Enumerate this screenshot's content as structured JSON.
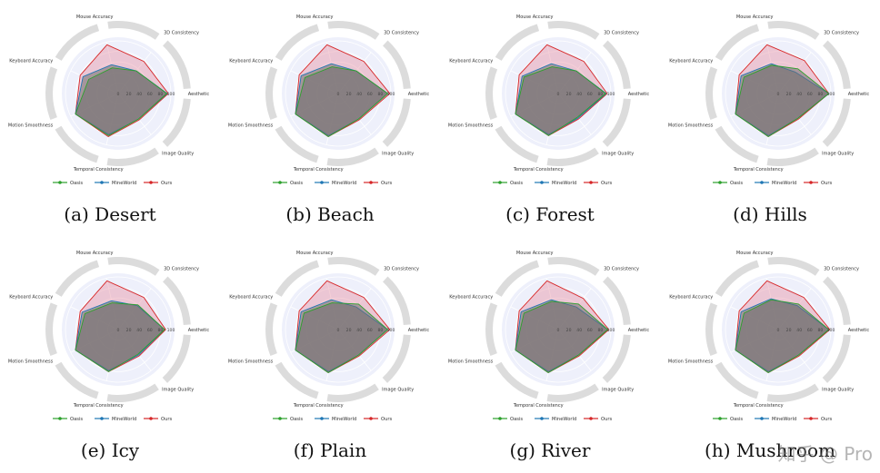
{
  "axes": [
    "Aesthetic",
    "Image Quality",
    "Temporal Consistency",
    "Motion Smoothness",
    "Keyboard Accuracy",
    "Mouse Accuracy",
    "3D Consistency"
  ],
  "ticks": [
    "0",
    "20",
    "40",
    "60",
    "80",
    "100"
  ],
  "legend": [
    "Oasis",
    "MineWorld",
    "Ours"
  ],
  "colors": {
    "Oasis": "#2ca02c",
    "MineWorld": "#1f77b4",
    "Ours": "#d62728",
    "Ours_fill": "rgba(228,120,140,0.35)",
    "Other_fill": "rgba(110,110,110,0.55)",
    "ring": "#dcdcdc",
    "plot_bg": "#eef0fb"
  },
  "watermark": "知乎 @ Pro",
  "chart_data": [
    {
      "type": "radar",
      "caption": "(a) Desert",
      "categories": [
        "Aesthetic",
        "Image Quality",
        "Temporal Consistency",
        "Motion Smoothness",
        "Keyboard Accuracy",
        "Mouse Accuracy",
        "3D Consistency"
      ],
      "rlim": [
        0,
        100
      ],
      "series": [
        {
          "name": "Oasis",
          "values": [
            92,
            62,
            82,
            90,
            62,
            50,
            55
          ]
        },
        {
          "name": "MineWorld",
          "values": [
            93,
            62,
            80,
            90,
            74,
            56,
            55
          ]
        },
        {
          "name": "Ours",
          "values": [
            95,
            64,
            84,
            90,
            80,
            95,
            78
          ]
        }
      ]
    },
    {
      "type": "radar",
      "caption": "(b) Beach",
      "categories": [
        "Aesthetic",
        "Image Quality",
        "Temporal Consistency",
        "Motion Smoothness",
        "Keyboard Accuracy",
        "Mouse Accuracy",
        "3D Consistency"
      ],
      "rlim": [
        0,
        100
      ],
      "series": [
        {
          "name": "Oasis",
          "values": [
            94,
            62,
            84,
            90,
            70,
            52,
            55
          ]
        },
        {
          "name": "MineWorld",
          "values": [
            94,
            62,
            82,
            90,
            78,
            58,
            55
          ]
        },
        {
          "name": "Ours",
          "values": [
            98,
            64,
            84,
            90,
            82,
            95,
            78
          ]
        }
      ]
    },
    {
      "type": "radar",
      "caption": "(c) Forest",
      "categories": [
        "Aesthetic",
        "Image Quality",
        "Temporal Consistency",
        "Motion Smoothness",
        "Keyboard Accuracy",
        "Mouse Accuracy",
        "3D Consistency"
      ],
      "rlim": [
        0,
        100
      ],
      "series": [
        {
          "name": "Oasis",
          "values": [
            90,
            58,
            82,
            90,
            72,
            52,
            55
          ]
        },
        {
          "name": "MineWorld",
          "values": [
            91,
            60,
            80,
            90,
            76,
            58,
            55
          ]
        },
        {
          "name": "Ours",
          "values": [
            93,
            62,
            82,
            90,
            82,
            95,
            78
          ]
        }
      ]
    },
    {
      "type": "radar",
      "caption": "(d) Hills",
      "categories": [
        "Aesthetic",
        "Image Quality",
        "Temporal Consistency",
        "Motion Smoothness",
        "Keyboard Accuracy",
        "Mouse Accuracy",
        "3D Consistency"
      ],
      "rlim": [
        0,
        100
      ],
      "series": [
        {
          "name": "Oasis",
          "values": [
            96,
            60,
            84,
            90,
            72,
            55,
            60
          ]
        },
        {
          "name": "MineWorld",
          "values": [
            96,
            60,
            82,
            90,
            78,
            58,
            52
          ]
        },
        {
          "name": "Ours",
          "values": [
            96,
            62,
            84,
            90,
            82,
            95,
            80
          ]
        }
      ]
    },
    {
      "type": "radar",
      "caption": "(e) Icy",
      "categories": [
        "Aesthetic",
        "Image Quality",
        "Temporal Consistency",
        "Motion Smoothness",
        "Keyboard Accuracy",
        "Mouse Accuracy",
        "3D Consistency"
      ],
      "rlim": [
        0,
        100
      ],
      "series": [
        {
          "name": "Oasis",
          "values": [
            88,
            60,
            82,
            90,
            70,
            52,
            60
          ]
        },
        {
          "name": "MineWorld",
          "values": [
            88,
            62,
            80,
            90,
            76,
            56,
            58
          ]
        },
        {
          "name": "Ours",
          "values": [
            90,
            64,
            82,
            90,
            80,
            95,
            78
          ]
        }
      ]
    },
    {
      "type": "radar",
      "caption": "(f) Plain",
      "categories": [
        "Aesthetic",
        "Image Quality",
        "Temporal Consistency",
        "Motion Smoothness",
        "Keyboard Accuracy",
        "Mouse Accuracy",
        "3D Consistency"
      ],
      "rlim": [
        0,
        100
      ],
      "series": [
        {
          "name": "Oasis",
          "values": [
            94,
            62,
            84,
            90,
            72,
            52,
            62
          ]
        },
        {
          "name": "MineWorld",
          "values": [
            94,
            62,
            82,
            90,
            78,
            58,
            55
          ]
        },
        {
          "name": "Ours",
          "values": [
            98,
            64,
            84,
            90,
            82,
            95,
            78
          ]
        }
      ]
    },
    {
      "type": "radar",
      "caption": "(g) River",
      "categories": [
        "Aesthetic",
        "Image Quality",
        "Temporal Consistency",
        "Motion Smoothness",
        "Keyboard Accuracy",
        "Mouse Accuracy",
        "3D Consistency"
      ],
      "rlim": [
        0,
        100
      ],
      "series": [
        {
          "name": "Oasis",
          "values": [
            94,
            62,
            84,
            90,
            72,
            55,
            62
          ]
        },
        {
          "name": "MineWorld",
          "values": [
            94,
            62,
            82,
            90,
            78,
            58,
            55
          ]
        },
        {
          "name": "Ours",
          "values": [
            96,
            64,
            84,
            90,
            82,
            95,
            76
          ]
        }
      ]
    },
    {
      "type": "radar",
      "caption": "(h) Mushroom",
      "categories": [
        "Aesthetic",
        "Image Quality",
        "Temporal Consistency",
        "Motion Smoothness",
        "Keyboard Accuracy",
        "Mouse Accuracy",
        "3D Consistency"
      ],
      "rlim": [
        0,
        100
      ],
      "series": [
        {
          "name": "Oasis",
          "values": [
            96,
            62,
            84,
            90,
            72,
            58,
            62
          ]
        },
        {
          "name": "MineWorld",
          "values": [
            96,
            62,
            82,
            90,
            78,
            60,
            58
          ]
        },
        {
          "name": "Ours",
          "values": [
            98,
            64,
            84,
            90,
            82,
            95,
            78
          ]
        }
      ]
    }
  ]
}
